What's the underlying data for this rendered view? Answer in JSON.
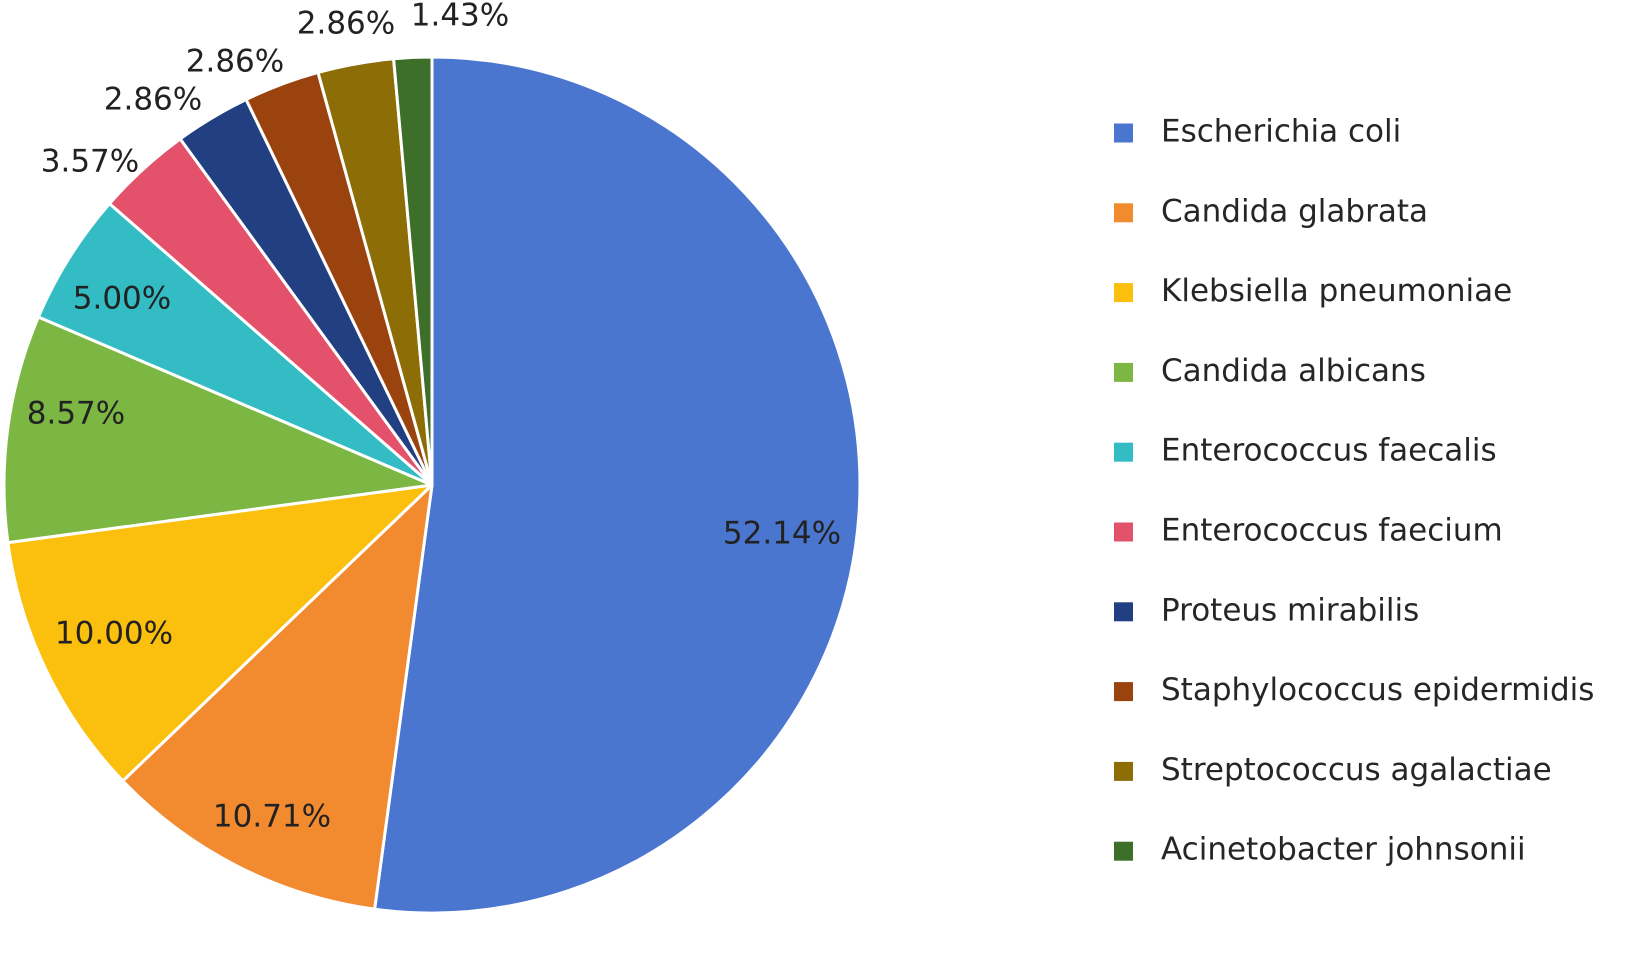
{
  "chart_data": {
    "type": "pie",
    "title": "",
    "unit": "%",
    "start_angle_deg": 0,
    "direction": "clockwise",
    "legend_position": "right",
    "slices": [
      {
        "label": "Escherichia coli",
        "value": 52.14,
        "display": "52.14%",
        "color": "#4a76cf"
      },
      {
        "label": "Candida glabrata",
        "value": 10.71,
        "display": "10.71%",
        "color": "#f28a30"
      },
      {
        "label": "Klebsiella pneumoniae",
        "value": 10.0,
        "display": "10.00%",
        "color": "#fbbf0d"
      },
      {
        "label": "Candida albicans",
        "value": 8.57,
        "display": "8.57%",
        "color": "#7cb643"
      },
      {
        "label": "Enterococcus faecalis",
        "value": 5.0,
        "display": "5.00%",
        "color": "#33bcc3"
      },
      {
        "label": "Enterococcus faecium",
        "value": 3.57,
        "display": "3.57%",
        "color": "#e3526a"
      },
      {
        "label": "Proteus mirabilis",
        "value": 2.86,
        "display": "2.86%",
        "color": "#223f82"
      },
      {
        "label": "Staphylococcus epidermidis",
        "value": 2.86,
        "display": "2.86%",
        "color": "#9b430f"
      },
      {
        "label": "Streptococcus agalactiae",
        "value": 2.86,
        "display": "2.86%",
        "color": "#8c6d06"
      },
      {
        "label": "Acinetobacter johnsonii",
        "value": 1.43,
        "display": "1.43%",
        "color": "#3d6e2a"
      }
    ]
  }
}
